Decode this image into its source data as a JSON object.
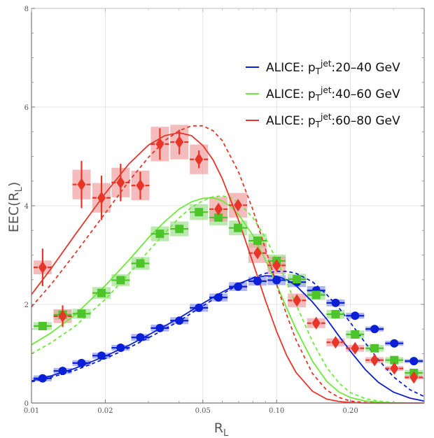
{
  "chart_data": {
    "type": "scatter",
    "title": "",
    "xlabel": "R",
    "xlabel_sub": "L",
    "ylabel": "EEC(R",
    "ylabel_sub": "L",
    "ylabel_close": ")",
    "xscale": "log",
    "xlim": [
      0.01,
      0.4
    ],
    "ylim": [
      0,
      8
    ],
    "xticks": [
      {
        "value": 0.01,
        "label": "0.01"
      },
      {
        "value": 0.02,
        "label": "0.02"
      },
      {
        "value": 0.05,
        "label": "0.05"
      },
      {
        "value": 0.1,
        "label": "0.10"
      },
      {
        "value": 0.2,
        "label": "0.20"
      }
    ],
    "xminor": [
      0.03,
      0.04,
      0.06,
      0.07,
      0.08,
      0.09,
      0.3
    ],
    "yticks": [
      {
        "value": 0,
        "label": "0"
      },
      {
        "value": 2,
        "label": "2"
      },
      {
        "value": 4,
        "label": "4"
      },
      {
        "value": 6,
        "label": "6"
      },
      {
        "value": 8,
        "label": "8"
      }
    ],
    "yminor": [
      0.5,
      1,
      1.5,
      2.5,
      3,
      3.5,
      4.5,
      5,
      5.5,
      6.5,
      7,
      7.5
    ],
    "grid": true,
    "legend_position": "top-right",
    "x": [
      0.0111,
      0.0134,
      0.016,
      0.0193,
      0.0231,
      0.0278,
      0.0334,
      0.0401,
      0.0482,
      0.0579,
      0.0696,
      0.0836,
      0.1,
      0.121,
      0.145,
      0.174,
      0.209,
      0.251,
      0.302,
      0.363
    ],
    "series": [
      {
        "name": "ALICE: p_T^jet:20-40 GeV",
        "legend_prefix": "ALICE: p",
        "legend_sub": "T",
        "legend_sup": "jet",
        "legend_suffix": ":20–40 GeV",
        "color": "#0a1fd6",
        "band_color": "#8f96ee",
        "marker": "circle",
        "values": [
          0.5,
          0.65,
          0.81,
          0.96,
          1.12,
          1.33,
          1.52,
          1.67,
          1.93,
          2.14,
          2.36,
          2.47,
          2.49,
          2.45,
          2.28,
          2.03,
          1.77,
          1.5,
          1.21,
          0.85
        ],
        "stat_err": [
          0.03,
          0.03,
          0.03,
          0.03,
          0.03,
          0.03,
          0.03,
          0.03,
          0.03,
          0.03,
          0.03,
          0.03,
          0.03,
          0.03,
          0.03,
          0.03,
          0.03,
          0.03,
          0.03,
          0.03
        ],
        "sys_err": [
          0.06,
          0.06,
          0.06,
          0.06,
          0.06,
          0.07,
          0.07,
          0.07,
          0.08,
          0.08,
          0.09,
          0.09,
          0.1,
          0.1,
          0.09,
          0.07,
          0.06,
          0.05,
          0.05,
          0.04
        ],
        "theory_solid": {
          "x": [
            0.01,
            0.012,
            0.015,
            0.02,
            0.025,
            0.03,
            0.04,
            0.05,
            0.06,
            0.07,
            0.08,
            0.09,
            0.1,
            0.11,
            0.12,
            0.14,
            0.16,
            0.18,
            0.2,
            0.23,
            0.26,
            0.3,
            0.35,
            0.4
          ],
          "y": [
            0.45,
            0.55,
            0.7,
            0.95,
            1.17,
            1.38,
            1.72,
            2.02,
            2.25,
            2.42,
            2.53,
            2.58,
            2.57,
            2.5,
            2.38,
            2.05,
            1.7,
            1.35,
            1.05,
            0.68,
            0.42,
            0.22,
            0.1,
            0.04
          ]
        },
        "theory_dashed": {
          "x": [
            0.01,
            0.012,
            0.015,
            0.02,
            0.025,
            0.03,
            0.04,
            0.05,
            0.06,
            0.07,
            0.08,
            0.09,
            0.1,
            0.11,
            0.12,
            0.14,
            0.16,
            0.18,
            0.2,
            0.23,
            0.26,
            0.3,
            0.35,
            0.4
          ],
          "y": [
            0.43,
            0.52,
            0.66,
            0.9,
            1.12,
            1.32,
            1.66,
            1.97,
            2.21,
            2.4,
            2.54,
            2.63,
            2.67,
            2.67,
            2.63,
            2.46,
            2.2,
            1.92,
            1.63,
            1.22,
            0.88,
            0.53,
            0.27,
            0.13
          ]
        }
      },
      {
        "name": "ALICE: p_T^jet:40-60 GeV",
        "legend_prefix": "ALICE: p",
        "legend_sub": "T",
        "legend_sup": "jet",
        "legend_suffix": ":40–60 GeV",
        "color": "#4dc42a",
        "band_color": "#9fe08f",
        "line_color": "#6ee83a",
        "marker": "square",
        "values": [
          1.56,
          1.79,
          1.81,
          2.23,
          2.49,
          2.83,
          3.43,
          3.53,
          3.87,
          3.76,
          3.55,
          3.29,
          2.88,
          2.51,
          2.19,
          1.8,
          1.39,
          1.11,
          0.87,
          0.61
        ],
        "stat_err": [
          0.03,
          0.03,
          0.03,
          0.03,
          0.03,
          0.03,
          0.03,
          0.03,
          0.03,
          0.03,
          0.03,
          0.03,
          0.03,
          0.03,
          0.03,
          0.03,
          0.03,
          0.03,
          0.03,
          0.03
        ],
        "sys_err": [
          0.08,
          0.1,
          0.1,
          0.12,
          0.12,
          0.13,
          0.15,
          0.15,
          0.16,
          0.16,
          0.15,
          0.14,
          0.13,
          0.11,
          0.1,
          0.09,
          0.08,
          0.07,
          0.06,
          0.06
        ],
        "theory_solid": {
          "x": [
            0.01,
            0.012,
            0.015,
            0.02,
            0.025,
            0.03,
            0.035,
            0.04,
            0.045,
            0.05,
            0.055,
            0.06,
            0.065,
            0.07,
            0.08,
            0.09,
            0.1,
            0.11,
            0.12,
            0.14,
            0.16,
            0.18,
            0.2,
            0.23,
            0.26,
            0.3,
            0.35,
            0.4
          ],
          "y": [
            1.18,
            1.42,
            1.78,
            2.38,
            2.9,
            3.35,
            3.68,
            3.93,
            4.08,
            4.15,
            4.16,
            4.1,
            3.98,
            3.82,
            3.4,
            2.9,
            2.4,
            1.92,
            1.5,
            0.85,
            0.44,
            0.22,
            0.11,
            0.04,
            0.02,
            0.0,
            0.0,
            0.0
          ]
        },
        "theory_dashed": {
          "x": [
            0.01,
            0.012,
            0.015,
            0.02,
            0.025,
            0.03,
            0.035,
            0.04,
            0.045,
            0.05,
            0.055,
            0.06,
            0.065,
            0.07,
            0.08,
            0.09,
            0.1,
            0.11,
            0.12,
            0.14,
            0.16,
            0.18,
            0.2,
            0.23,
            0.26,
            0.3,
            0.35,
            0.4
          ],
          "y": [
            1.0,
            1.22,
            1.55,
            2.1,
            2.62,
            3.08,
            3.45,
            3.75,
            3.97,
            4.1,
            4.18,
            4.2,
            4.16,
            4.06,
            3.76,
            3.35,
            2.9,
            2.44,
            2.0,
            1.25,
            0.72,
            0.4,
            0.21,
            0.09,
            0.04,
            0.01,
            0.0,
            0.0
          ]
        }
      },
      {
        "name": "ALICE: p_T^jet:60-80 GeV",
        "legend_prefix": "ALICE: p",
        "legend_sub": "T",
        "legend_sup": "jet",
        "legend_suffix": ":60–80 GeV",
        "color": "#e8352a",
        "band_color": "#f0a0a0",
        "marker": "diamond",
        "values": [
          2.75,
          1.76,
          4.43,
          4.16,
          4.47,
          4.41,
          5.25,
          5.29,
          4.94,
          3.93,
          4.01,
          3.04,
          2.79,
          2.08,
          1.62,
          1.23,
          1.11,
          0.87,
          0.7,
          0.52
        ],
        "stat_err": [
          0.38,
          0.22,
          0.48,
          0.45,
          0.38,
          0.28,
          0.32,
          0.25,
          0.18,
          0.1,
          0.1,
          0.08,
          0.07,
          0.05,
          0.04,
          0.04,
          0.03,
          0.03,
          0.03,
          0.03
        ],
        "sys_err": [
          0.14,
          0.14,
          0.3,
          0.3,
          0.3,
          0.3,
          0.35,
          0.35,
          0.3,
          0.25,
          0.25,
          0.2,
          0.18,
          0.14,
          0.1,
          0.08,
          0.07,
          0.06,
          0.05,
          0.04
        ],
        "theory_solid": {
          "x": [
            0.01,
            0.012,
            0.015,
            0.02,
            0.025,
            0.03,
            0.035,
            0.04,
            0.045,
            0.05,
            0.055,
            0.06,
            0.07,
            0.08,
            0.09,
            0.1,
            0.11,
            0.12,
            0.14,
            0.16,
            0.18,
            0.2,
            0.23,
            0.26,
            0.3,
            0.35,
            0.4
          ],
          "y": [
            2.2,
            2.72,
            3.4,
            4.25,
            4.85,
            5.23,
            5.42,
            5.48,
            5.42,
            5.22,
            4.93,
            4.55,
            3.7,
            2.85,
            2.08,
            1.45,
            0.96,
            0.62,
            0.24,
            0.08,
            0.03,
            0.01,
            0.0,
            0.0,
            0.0,
            0.0,
            0.0
          ]
        },
        "theory_dashed": {
          "x": [
            0.01,
            0.012,
            0.015,
            0.02,
            0.025,
            0.03,
            0.035,
            0.04,
            0.045,
            0.05,
            0.055,
            0.06,
            0.07,
            0.08,
            0.09,
            0.1,
            0.11,
            0.12,
            0.14,
            0.16,
            0.18,
            0.2,
            0.23,
            0.26,
            0.3,
            0.35,
            0.4
          ],
          "y": [
            1.95,
            2.4,
            3.02,
            3.85,
            4.5,
            4.98,
            5.32,
            5.52,
            5.62,
            5.62,
            5.52,
            5.32,
            4.68,
            3.92,
            3.12,
            2.4,
            1.78,
            1.28,
            0.6,
            0.26,
            0.11,
            0.04,
            0.01,
            0.0,
            0.0,
            0.0,
            0.0
          ]
        }
      }
    ]
  }
}
